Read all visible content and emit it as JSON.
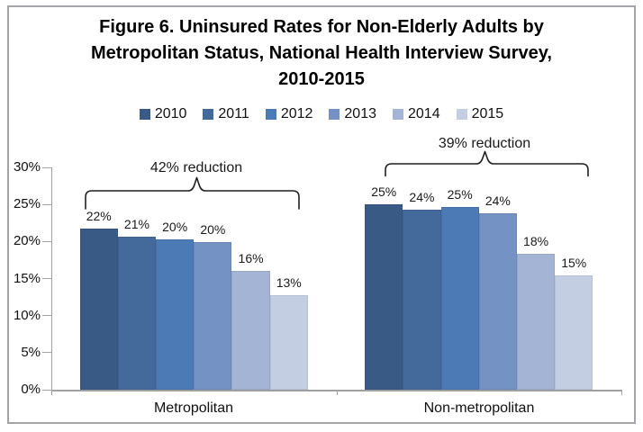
{
  "title": {
    "line1": "Figure 6. Uninsured Rates for Non-Elderly Adults by",
    "line2": "Metropolitan Status, National Health Interview Survey,",
    "line3": "2010-2015"
  },
  "chart_data": {
    "type": "bar",
    "title": "Figure 6. Uninsured Rates for Non-Elderly Adults by Metropolitan Status, National Health Interview Survey, 2010-2015",
    "categories": [
      "Metropolitan",
      "Non-metropolitan"
    ],
    "series": [
      {
        "name": "2010",
        "color": "#3A5A86",
        "values": [
          21.8,
          25.0
        ],
        "labels": [
          "22%",
          "25%"
        ]
      },
      {
        "name": "2011",
        "color": "#44699B",
        "values": [
          20.7,
          24.3
        ],
        "labels": [
          "21%",
          "24%"
        ]
      },
      {
        "name": "2012",
        "color": "#4C7AB4",
        "values": [
          20.3,
          24.6
        ],
        "labels": [
          "20%",
          "25%"
        ]
      },
      {
        "name": "2013",
        "color": "#7592C4",
        "values": [
          19.9,
          23.8
        ],
        "labels": [
          "20%",
          "24%"
        ]
      },
      {
        "name": "2014",
        "color": "#A4B4D4",
        "values": [
          16.0,
          18.4
        ],
        "labels": [
          "16%",
          "18%"
        ]
      },
      {
        "name": "2015",
        "color": "#C4CEE3",
        "values": [
          12.7,
          15.4
        ],
        "labels": [
          "13%",
          "15%"
        ]
      }
    ],
    "ylim": [
      0,
      30
    ],
    "yticks": [
      "30%",
      "25%",
      "20%",
      "15%",
      "10%",
      "5%",
      "0%"
    ],
    "ytick_values": [
      30,
      25,
      20,
      15,
      10,
      5,
      0
    ],
    "legend_position": "top",
    "grid": false,
    "annotations": [
      {
        "text": "42% reduction",
        "category": "Metropolitan"
      },
      {
        "text": "39% reduction",
        "category": "Non-metropolitan"
      }
    ]
  }
}
